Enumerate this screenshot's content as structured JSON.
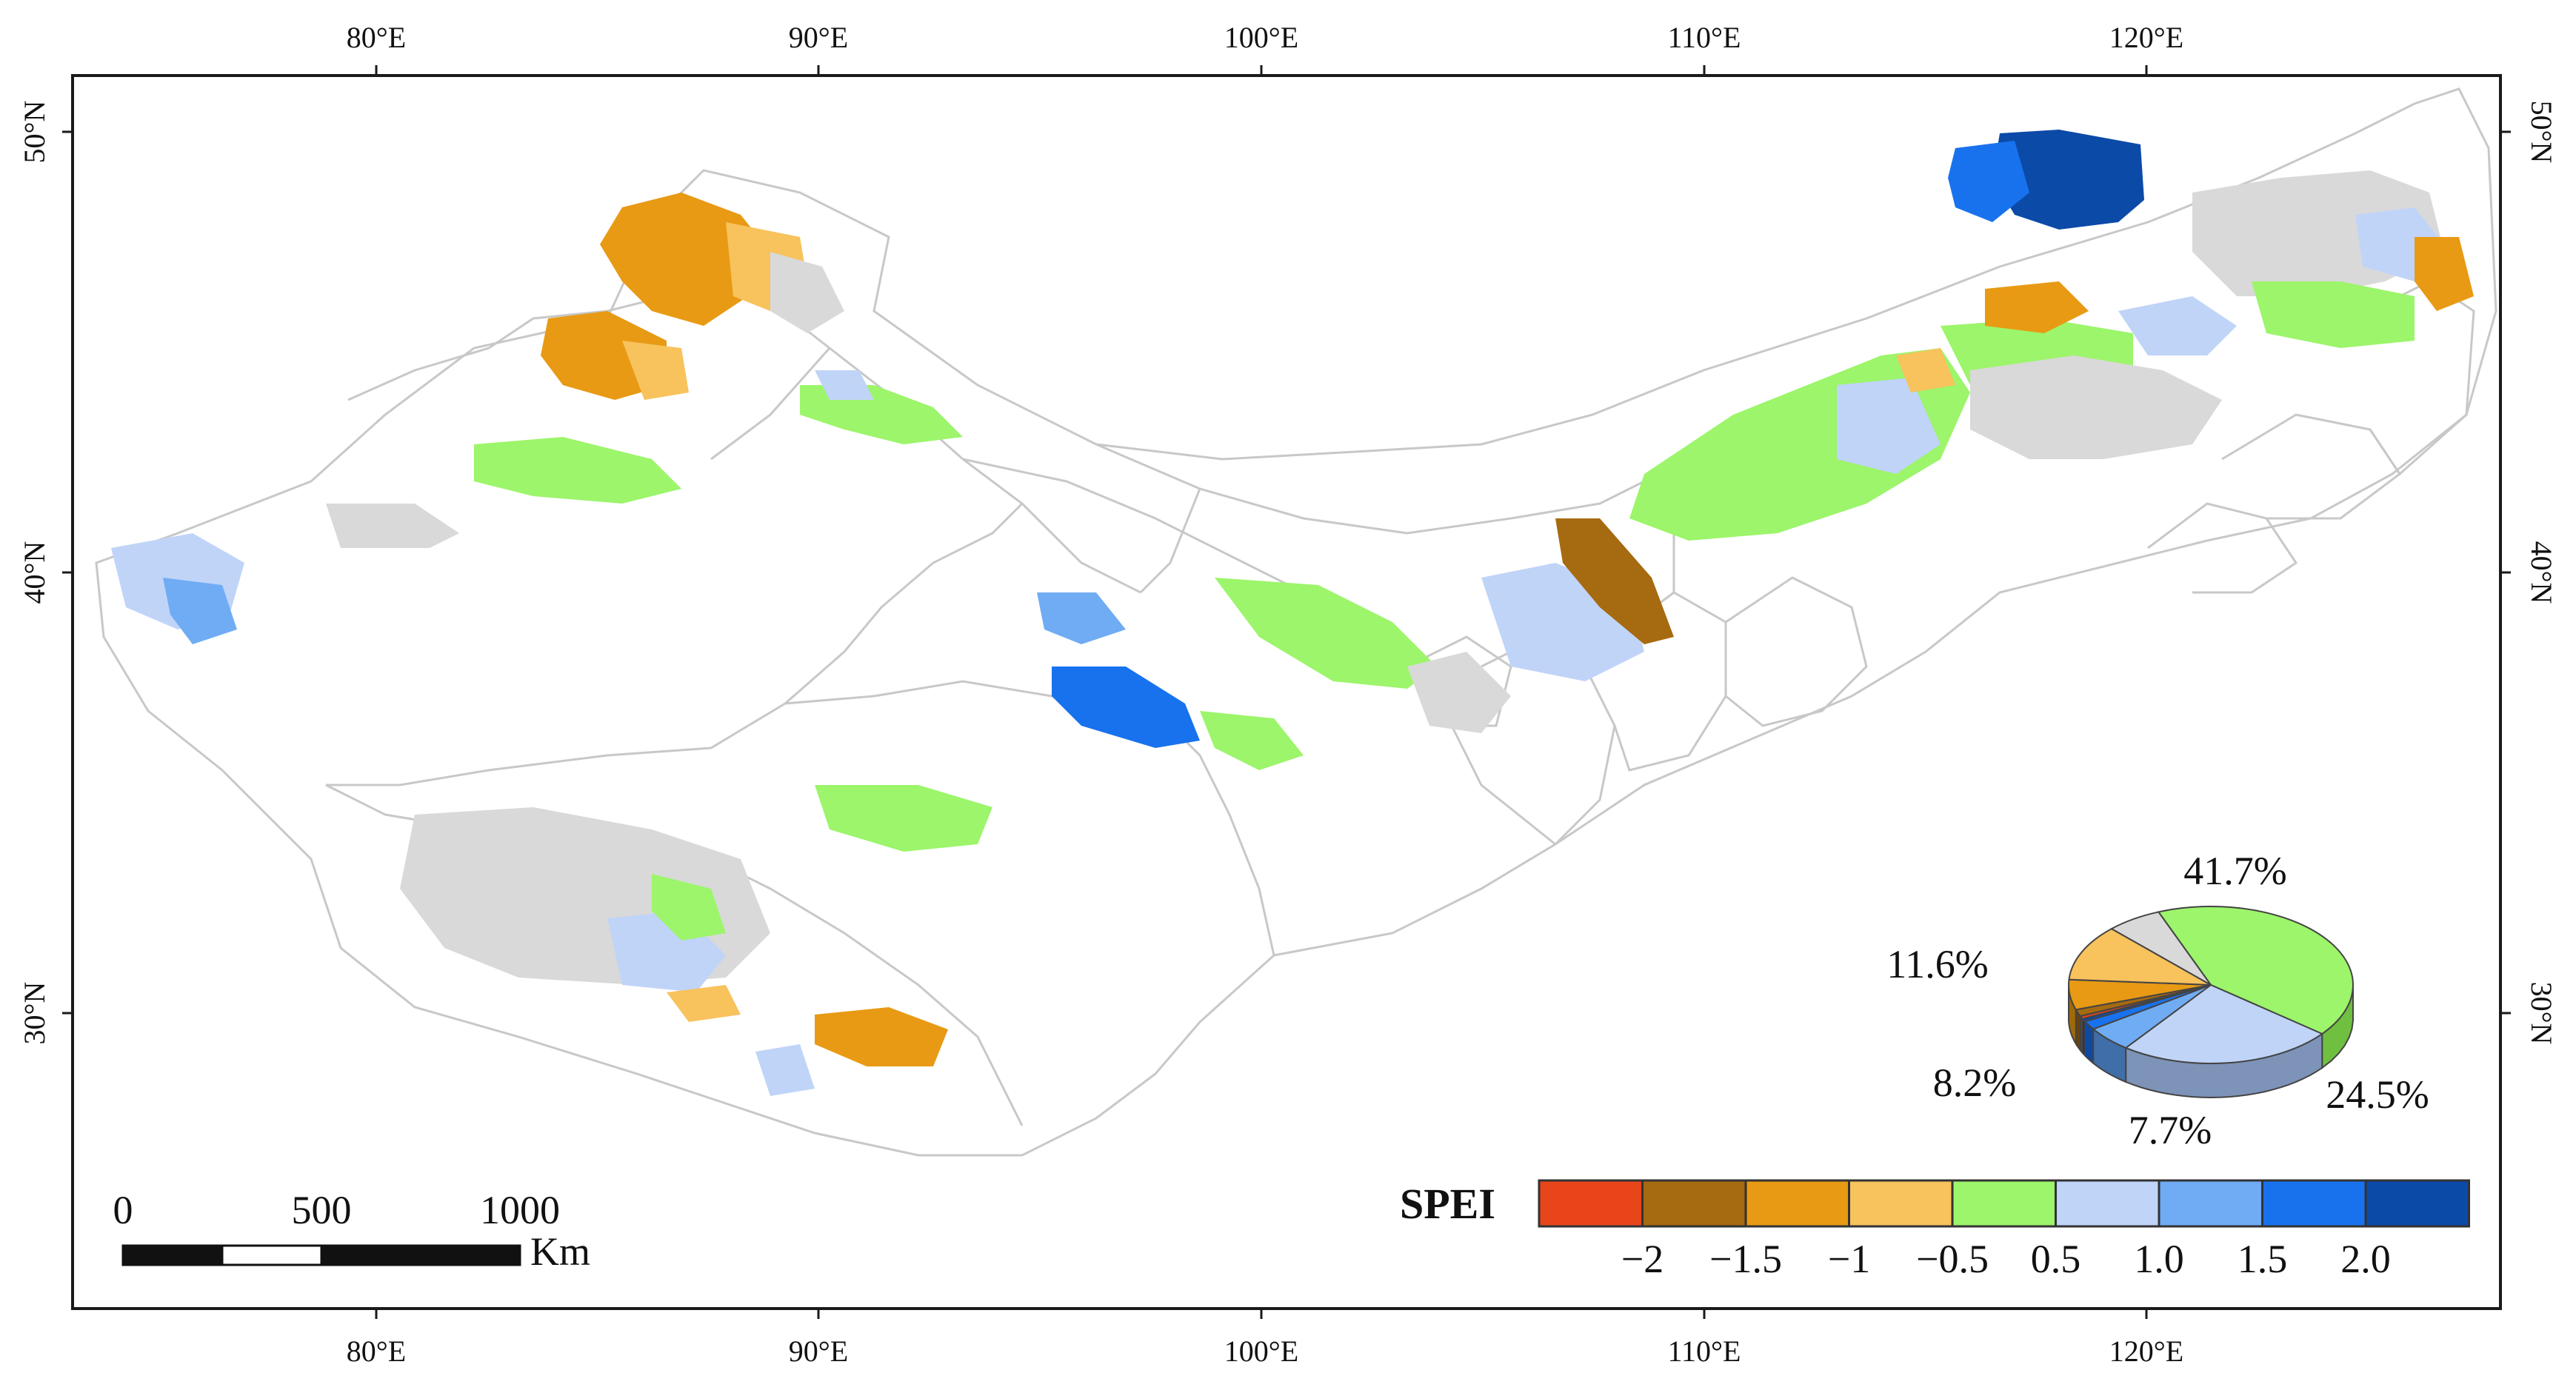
{
  "map": {
    "longitude_labels": [
      "80°E",
      "90°E",
      "100°E",
      "110°E",
      "120°E"
    ],
    "latitude_labels": [
      "50°N",
      "40°N",
      "30°N"
    ]
  },
  "colors": {
    "frame": "#1a1a1a",
    "boundary": "#c8c8c8",
    "no_trend": "#d9d9d9",
    "classes": [
      "#e8461a",
      "#a66a10",
      "#e89a14",
      "#f8c25c",
      "#9cf56a",
      "#c0d4f8",
      "#70acf4",
      "#1872ee",
      "#0c4aa8"
    ]
  },
  "scale_bar": {
    "labels": [
      "0",
      "500",
      "1000"
    ],
    "unit": "Km"
  },
  "legend": {
    "title": "SPEI",
    "tick_labels": [
      "−2",
      "−1.5",
      "−1",
      "−0.5",
      "0.5",
      "1.0",
      "1.5",
      "2.0"
    ]
  },
  "pie": {
    "labels": [
      "41.7%",
      "24.5%",
      "7.7%",
      "8.2%",
      "11.6%"
    ],
    "slices": [
      {
        "value": 41.7,
        "color": "#9cf56a",
        "side": "#6fc040"
      },
      {
        "value": 24.5,
        "color": "#c0d4f8",
        "side": "#7d93b8"
      },
      {
        "value": 5.3,
        "color": "#70acf4",
        "side": "#3f6ea8"
      },
      {
        "value": 1.8,
        "color": "#1872ee",
        "side": "#0e48a0"
      },
      {
        "value": 0.6,
        "color": "#0c4aa8",
        "side": "#072e70"
      },
      {
        "value": 0.6,
        "color": "#e8461a",
        "side": "#9c2a08"
      },
      {
        "value": 1.4,
        "color": "#a66a10",
        "side": "#6b4208"
      },
      {
        "value": 6.2,
        "color": "#e89a14",
        "side": "#a06a08"
      },
      {
        "value": 11.6,
        "color": "#f8c25c",
        "side": "#b88a38"
      },
      {
        "value": 6.3,
        "color": "#d9d9d9",
        "side": "#9a9a9a"
      }
    ]
  }
}
